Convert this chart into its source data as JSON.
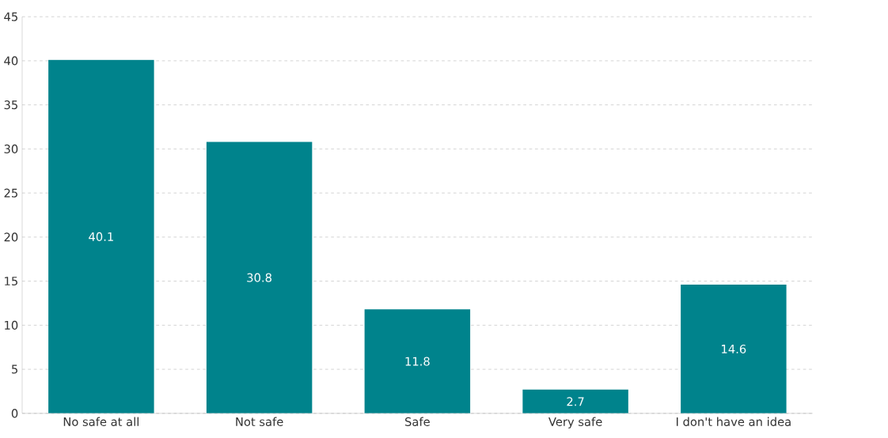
{
  "chart_data": {
    "type": "bar",
    "categories": [
      "No safe at all",
      "Not safe",
      "Safe",
      "Very safe",
      "I don't have an idea"
    ],
    "values": [
      40.1,
      30.8,
      11.8,
      2.7,
      14.6
    ],
    "color": "#00838c",
    "ylim": [
      0,
      45
    ],
    "yticks": [
      0,
      5,
      10,
      15,
      20,
      25,
      30,
      35,
      40,
      45
    ],
    "grid": "y",
    "data_labels": true
  }
}
